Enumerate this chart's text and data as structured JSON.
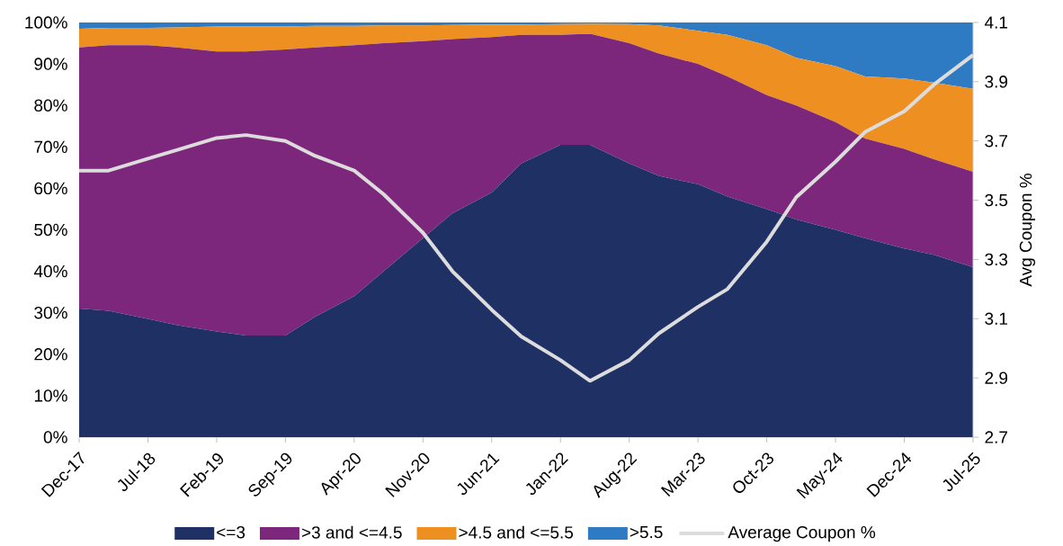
{
  "chart_data": {
    "type": "area",
    "stacked": true,
    "legend": "bottom",
    "y2label": "Avg Coupon %",
    "x": [
      "2017-12",
      "2018-03",
      "2018-07",
      "2018-10",
      "2019-02",
      "2019-05",
      "2019-09",
      "2019-12",
      "2020-04",
      "2020-07",
      "2020-11",
      "2021-02",
      "2021-06",
      "2021-09",
      "2022-01",
      "2022-04",
      "2022-08",
      "2022-11",
      "2023-03",
      "2023-06",
      "2023-10",
      "2024-01",
      "2024-05",
      "2024-08",
      "2024-12",
      "2025-03",
      "2025-07"
    ],
    "xlim": [
      "2017-12",
      "2025-07"
    ],
    "xticks": [
      {
        "value": "2017-12",
        "label": "Dec-17"
      },
      {
        "value": "2018-07",
        "label": "Jul-18"
      },
      {
        "value": "2019-02",
        "label": "Feb-19"
      },
      {
        "value": "2019-09",
        "label": "Sep-19"
      },
      {
        "value": "2020-04",
        "label": "Apr-20"
      },
      {
        "value": "2020-11",
        "label": "Nov-20"
      },
      {
        "value": "2021-06",
        "label": "Jun-21"
      },
      {
        "value": "2022-01",
        "label": "Jan-22"
      },
      {
        "value": "2022-08",
        "label": "Aug-22"
      },
      {
        "value": "2023-03",
        "label": "Mar-23"
      },
      {
        "value": "2023-10",
        "label": "Oct-23"
      },
      {
        "value": "2024-05",
        "label": "May-24"
      },
      {
        "value": "2024-12",
        "label": "Dec-24"
      },
      {
        "value": "2025-07",
        "label": "Jul-25"
      }
    ],
    "ylim": [
      0,
      100
    ],
    "yticks": [
      {
        "value": 0,
        "label": "0%"
      },
      {
        "value": 10,
        "label": "10%"
      },
      {
        "value": 20,
        "label": "20%"
      },
      {
        "value": 30,
        "label": "30%"
      },
      {
        "value": 40,
        "label": "40%"
      },
      {
        "value": 50,
        "label": "50%"
      },
      {
        "value": 60,
        "label": "60%"
      },
      {
        "value": 70,
        "label": "70%"
      },
      {
        "value": 80,
        "label": "80%"
      },
      {
        "value": 90,
        "label": "90%"
      },
      {
        "value": 100,
        "label": "100%"
      }
    ],
    "y2lim": [
      2.7,
      4.1
    ],
    "y2ticks": [
      2.7,
      2.9,
      3.1,
      3.3,
      3.5,
      3.7,
      3.9,
      4.1
    ],
    "series": [
      {
        "name": "<=3",
        "color": "#1f3064",
        "values": [
          31,
          30.5,
          28.5,
          27,
          25.5,
          24.5,
          24.5,
          29,
          34,
          40,
          48,
          54,
          59,
          66,
          70.5,
          70.5,
          66,
          63,
          61,
          58,
          55,
          52.5,
          50,
          48,
          45.5,
          44,
          41
        ]
      },
      {
        "name": ">3 and <=4.5",
        "color": "#7d277c",
        "values": [
          63,
          64,
          66,
          67,
          67.5,
          68.5,
          69,
          65,
          60.5,
          55,
          47.5,
          42,
          37.5,
          31,
          26.5,
          26.8,
          29,
          29.5,
          29,
          29,
          27.5,
          27.5,
          26,
          24,
          24,
          23,
          23
        ]
      },
      {
        "name": ">4.5 and <=5.5",
        "color": "#ee8f22",
        "values": [
          4.5,
          4.2,
          4.2,
          4.8,
          6,
          6,
          5.5,
          5.2,
          4.7,
          4.3,
          3.8,
          3.4,
          3,
          2.5,
          2.6,
          2.4,
          4.6,
          6.8,
          8,
          10,
          12,
          11.5,
          13.5,
          15,
          17,
          18.5,
          20
        ]
      },
      {
        "name": ">5.5",
        "color": "#2e7bc3",
        "values": [
          1.5,
          1.3,
          1.3,
          1.2,
          1,
          1,
          1,
          0.8,
          0.8,
          0.7,
          0.7,
          0.6,
          0.5,
          0.5,
          0.4,
          0.3,
          0.4,
          0.7,
          2,
          3,
          5.5,
          8.5,
          10.5,
          13,
          13.5,
          14.5,
          16
        ]
      },
      {
        "name": "Average Coupon %",
        "type": "line",
        "axis": "y2",
        "color": "#dcdcdc",
        "values": [
          3.6,
          3.6,
          3.64,
          3.67,
          3.71,
          3.72,
          3.7,
          3.65,
          3.6,
          3.52,
          3.39,
          3.26,
          3.13,
          3.04,
          2.96,
          2.89,
          2.96,
          3.05,
          3.14,
          3.2,
          3.36,
          3.51,
          3.63,
          3.73,
          3.8,
          3.89,
          3.99
        ]
      }
    ]
  }
}
